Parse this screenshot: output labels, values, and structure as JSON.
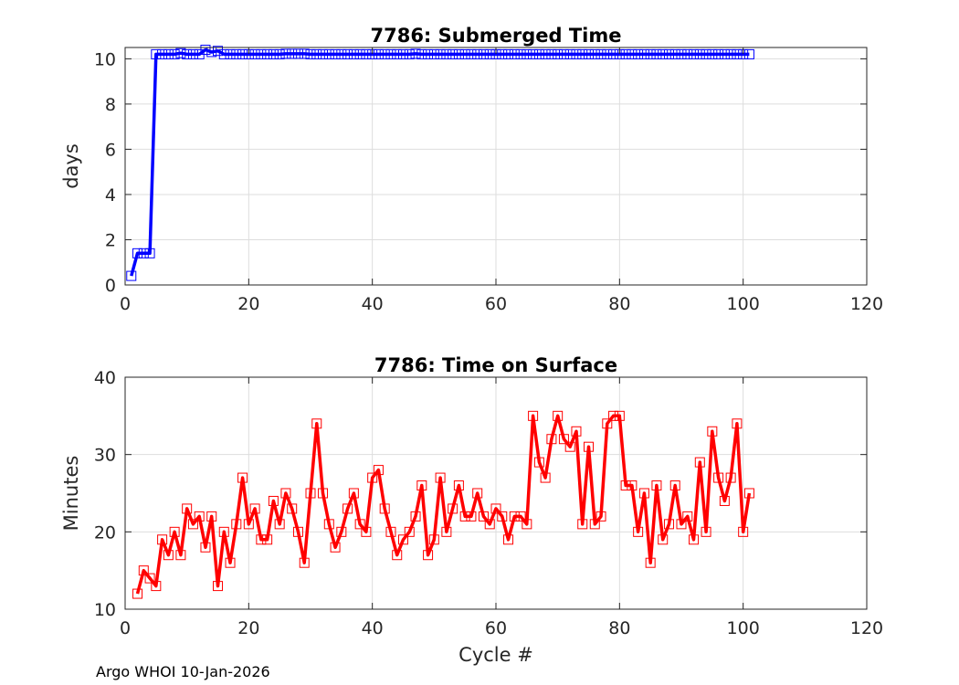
{
  "footer": "Argo WHOI 10-Jan-2026",
  "colors": {
    "series1": "#0000ff",
    "series2": "#ff0000",
    "grid": "#dddddd",
    "axis": "#262626"
  },
  "chart_data": [
    {
      "type": "line",
      "title": "7786: Submerged Time",
      "xlabel": "",
      "ylabel": "days",
      "xlim": [
        0,
        120
      ],
      "ylim": [
        0,
        10.5
      ],
      "xticks": [
        0,
        20,
        40,
        60,
        80,
        100,
        120
      ],
      "yticks": [
        0,
        2,
        4,
        6,
        8,
        10
      ],
      "grid": true,
      "marker": "square",
      "color": "#0000ff",
      "x": [
        1,
        2,
        3,
        4,
        5,
        6,
        7,
        8,
        9,
        10,
        11,
        12,
        13,
        14,
        15,
        16,
        17,
        18,
        19,
        20,
        21,
        22,
        23,
        24,
        25,
        26,
        27,
        28,
        29,
        30,
        31,
        32,
        33,
        34,
        35,
        36,
        37,
        38,
        39,
        40,
        41,
        42,
        43,
        44,
        45,
        46,
        47,
        48,
        49,
        50,
        51,
        52,
        53,
        54,
        55,
        56,
        57,
        58,
        59,
        60,
        61,
        62,
        63,
        64,
        65,
        66,
        67,
        68,
        69,
        70,
        71,
        72,
        73,
        74,
        75,
        76,
        77,
        78,
        79,
        80,
        81,
        82,
        83,
        84,
        85,
        86,
        87,
        88,
        89,
        90,
        91,
        92,
        93,
        94,
        95,
        96,
        97,
        98,
        99,
        100,
        101
      ],
      "y": [
        0.4,
        1.4,
        1.4,
        1.4,
        10.2,
        10.2,
        10.2,
        10.2,
        10.25,
        10.2,
        10.2,
        10.2,
        10.4,
        10.3,
        10.35,
        10.2,
        10.2,
        10.2,
        10.2,
        10.2,
        10.2,
        10.2,
        10.2,
        10.2,
        10.2,
        10.22,
        10.22,
        10.22,
        10.22,
        10.2,
        10.2,
        10.2,
        10.2,
        10.2,
        10.2,
        10.2,
        10.2,
        10.2,
        10.2,
        10.2,
        10.2,
        10.2,
        10.2,
        10.2,
        10.2,
        10.2,
        10.22,
        10.2,
        10.2,
        10.2,
        10.2,
        10.2,
        10.2,
        10.2,
        10.2,
        10.2,
        10.2,
        10.2,
        10.2,
        10.2,
        10.2,
        10.2,
        10.2,
        10.2,
        10.2,
        10.2,
        10.2,
        10.2,
        10.2,
        10.2,
        10.2,
        10.2,
        10.2,
        10.2,
        10.2,
        10.2,
        10.2,
        10.2,
        10.2,
        10.2,
        10.2,
        10.2,
        10.2,
        10.2,
        10.2,
        10.2,
        10.2,
        10.2,
        10.2,
        10.2,
        10.2,
        10.2,
        10.2,
        10.2,
        10.2,
        10.2,
        10.2,
        10.2,
        10.2,
        10.2,
        10.2
      ]
    },
    {
      "type": "line",
      "title": "7786: Time on Surface",
      "xlabel": "Cycle #",
      "ylabel": "Minutes",
      "xlim": [
        0,
        120
      ],
      "ylim": [
        10,
        40
      ],
      "xticks": [
        0,
        20,
        40,
        60,
        80,
        100,
        120
      ],
      "yticks": [
        10,
        20,
        30,
        40
      ],
      "grid": true,
      "marker": "square",
      "color": "#ff0000",
      "x": [
        2,
        3,
        4,
        5,
        6,
        7,
        8,
        9,
        10,
        11,
        12,
        13,
        14,
        15,
        16,
        17,
        18,
        19,
        20,
        21,
        22,
        23,
        24,
        25,
        26,
        27,
        28,
        29,
        30,
        31,
        32,
        33,
        34,
        35,
        36,
        37,
        38,
        39,
        40,
        41,
        42,
        43,
        44,
        45,
        46,
        47,
        48,
        49,
        50,
        51,
        52,
        53,
        54,
        55,
        56,
        57,
        58,
        59,
        60,
        61,
        62,
        63,
        64,
        65,
        66,
        67,
        68,
        69,
        70,
        71,
        72,
        73,
        74,
        75,
        76,
        77,
        78,
        79,
        80,
        81,
        82,
        83,
        84,
        85,
        86,
        87,
        88,
        89,
        90,
        91,
        92,
        93,
        94,
        95,
        96,
        97,
        98,
        99,
        100,
        101
      ],
      "y": [
        12,
        15,
        14,
        13,
        19,
        17,
        20,
        17,
        23,
        21,
        22,
        18,
        22,
        13,
        20,
        16,
        21,
        27,
        21,
        23,
        19,
        19,
        24,
        21,
        25,
        23,
        20,
        16,
        25,
        34,
        25,
        21,
        18,
        20,
        23,
        25,
        21,
        20,
        27,
        28,
        23,
        20,
        17,
        19,
        20,
        22,
        26,
        17,
        19,
        27,
        20,
        23,
        26,
        22,
        22,
        25,
        22,
        21,
        23,
        22,
        19,
        22,
        22,
        21,
        35,
        29,
        27,
        32,
        35,
        32,
        31,
        33,
        21,
        31,
        21,
        22,
        34,
        35,
        35,
        26,
        26,
        20,
        25,
        16,
        26,
        19,
        21,
        26,
        21,
        22,
        19,
        29,
        20,
        33,
        27,
        24,
        27,
        34,
        20,
        25
      ]
    }
  ]
}
